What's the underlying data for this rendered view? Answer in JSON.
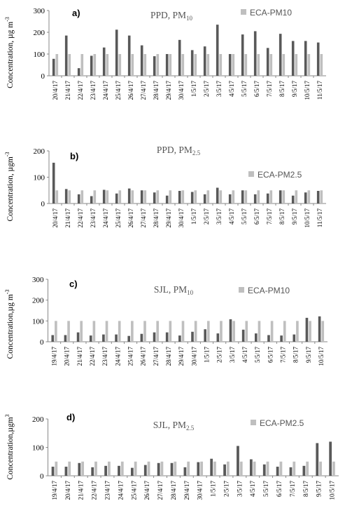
{
  "colors": {
    "measured": "#595959",
    "limit": "#bfbfbf"
  },
  "chart_data": [
    {
      "type": "bar",
      "panel_label": "a)",
      "title_main": "PPD, PM",
      "title_sub": "10",
      "ylabel": "Concentration, µg m",
      "ylabel_sup": "-3",
      "ylim": [
        0,
        300
      ],
      "yticks": [
        "0",
        "100",
        "200",
        "300"
      ],
      "legend_position": "top-right",
      "categories": [
        "20/4/17",
        "21/4/17",
        "22/4/17",
        "23/4/17",
        "24/4/17",
        "25/4/17",
        "26/4/17",
        "27/4/17",
        "28/4/17",
        "29/4/17",
        "30/4/17",
        "1/5/17",
        "2/5/17",
        "3/5/17",
        "4/5/17",
        "5/5/17",
        "6/5/17",
        "7/5/17",
        "8/5/17",
        "9/5/17",
        "10/5/17",
        "11/5/17"
      ],
      "series": [
        {
          "name": "",
          "role": "measured",
          "values": [
            78,
            185,
            35,
            92,
            130,
            212,
            185,
            140,
            90,
            100,
            165,
            118,
            135,
            235,
            100,
            190,
            205,
            128,
            193,
            160,
            160,
            153
          ]
        },
        {
          "name": "ECA-PM10",
          "role": "limit",
          "values": [
            100,
            100,
            100,
            100,
            100,
            100,
            100,
            100,
            100,
            100,
            100,
            100,
            100,
            100,
            100,
            100,
            100,
            100,
            100,
            100,
            100,
            100
          ]
        }
      ]
    },
    {
      "type": "bar",
      "panel_label": "b)",
      "title_main": "PPD, PM",
      "title_sub": "2.5",
      "ylabel": "Concentration, µgm",
      "ylabel_sup": "-3",
      "ylim": [
        0,
        200
      ],
      "yticks": [
        "0",
        "100",
        "200"
      ],
      "legend_position": "top-right",
      "categories": [
        "20/4/17",
        "21/4/17",
        "22/4/17",
        "23/4/17",
        "24/4/17",
        "25/4/17",
        "26/4/17",
        "27/4/17",
        "28/4/17",
        "29/4/17",
        "30/4/17",
        "1/5/17",
        "2/5/17",
        "3/5/17",
        "4/5/17",
        "5/5/17",
        "6/5/17",
        "7/5/17",
        "8/5/17",
        "9/5/17",
        "10/5/17",
        "11/5/17"
      ],
      "series": [
        {
          "name": "",
          "role": "measured",
          "values": [
            155,
            55,
            35,
            28,
            52,
            38,
            57,
            50,
            42,
            30,
            48,
            44,
            35,
            60,
            35,
            50,
            35,
            38,
            50,
            30,
            42,
            48
          ]
        },
        {
          "name": "ECA-PM2.5",
          "role": "limit",
          "values": [
            50,
            50,
            50,
            50,
            50,
            50,
            50,
            50,
            50,
            50,
            50,
            50,
            50,
            50,
            50,
            50,
            50,
            50,
            50,
            50,
            50,
            50
          ]
        }
      ]
    },
    {
      "type": "bar",
      "panel_label": "c)",
      "title_main": "SJL, PM",
      "title_sub": "10",
      "ylabel": "Concentration,µg m",
      "ylabel_sup": "-3",
      "ylim": [
        0,
        300
      ],
      "yticks": [
        "0",
        "100",
        "200",
        "300"
      ],
      "legend_position": "top-right",
      "categories": [
        "19/4/17",
        "20/4/17",
        "21/4/17",
        "22/4/17",
        "23/4/17",
        "24/4/17",
        "25/4/17",
        "26/4/17",
        "27/4/17",
        "28/4/17",
        "29/4/17",
        "30/4/17",
        "1/5/17",
        "2/5/17",
        "3/5/17",
        "4/5/17",
        "5/5/17",
        "6/5/17",
        "7/5/17",
        "8/5/17",
        "9/5/17",
        "10/5/17"
      ],
      "series": [
        {
          "name": "",
          "role": "measured",
          "values": [
            32,
            32,
            45,
            30,
            35,
            35,
            28,
            38,
            45,
            45,
            30,
            48,
            60,
            40,
            108,
            58,
            40,
            32,
            30,
            35,
            115,
            122
          ]
        },
        {
          "name": "ECA-PM10",
          "role": "limit",
          "values": [
            100,
            100,
            100,
            100,
            100,
            100,
            100,
            100,
            100,
            100,
            100,
            100,
            100,
            100,
            100,
            100,
            100,
            100,
            100,
            100,
            100,
            100
          ]
        }
      ]
    },
    {
      "type": "bar",
      "panel_label": "d)",
      "title_main": "SJL, PM",
      "title_sub": "2.5",
      "ylabel": "Concentration,µgm",
      "ylabel_sup": "3",
      "ylim": [
        0,
        200
      ],
      "yticks": [
        "0",
        "100",
        "200"
      ],
      "legend_position": "top-right",
      "categories": [
        "19/4/17",
        "20/4/17",
        "21/4/17",
        "22/4/17",
        "23/4/17",
        "24/4/17",
        "25/4/17",
        "26/4/17",
        "27/4/17",
        "28/4/17",
        "29/4/17",
        "30/4/17",
        "1/5/17",
        "2/5/17",
        "3/5/17",
        "4/5/17",
        "5/5/17",
        "6/5/17",
        "7/5/17",
        "8/5/17",
        "9/5/17",
        "10/5/17"
      ],
      "series": [
        {
          "name": "",
          "role": "measured",
          "values": [
            32,
            32,
            45,
            30,
            35,
            35,
            28,
            38,
            45,
            45,
            30,
            48,
            60,
            40,
            105,
            58,
            40,
            32,
            30,
            35,
            115,
            120
          ]
        },
        {
          "name": "ECA-PM2.5",
          "role": "limit",
          "values": [
            50,
            50,
            50,
            50,
            50,
            50,
            50,
            50,
            50,
            50,
            50,
            50,
            50,
            50,
            50,
            50,
            50,
            50,
            50,
            50,
            50,
            50
          ]
        }
      ]
    }
  ]
}
